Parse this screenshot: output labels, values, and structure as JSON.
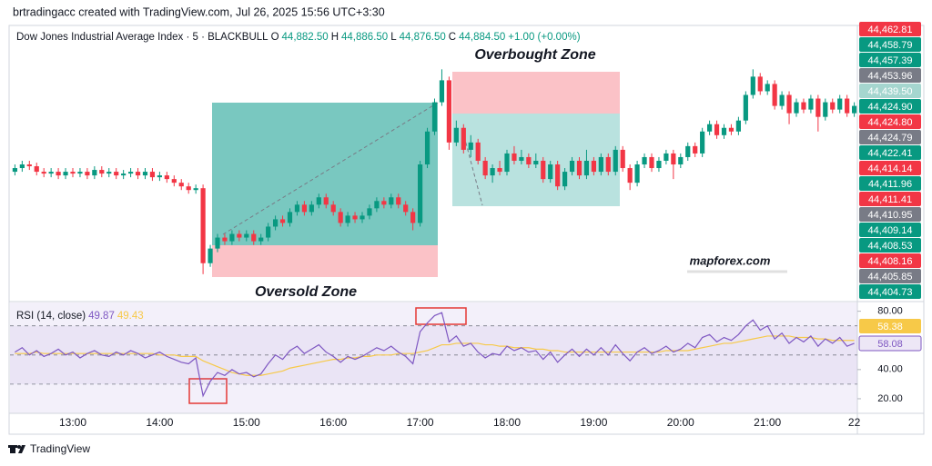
{
  "caption": "brtradingacc created with TradingView.com, Jul 26, 2025 15:56 UTC+3:30",
  "footer": {
    "brand": "TradingView"
  },
  "chart_data": [
    {
      "type": "candlestick",
      "title": "Dow Jones Industrial Average Index · 5 · BLACKBULL",
      "legend": [
        {
          "key": "O",
          "value": "44,882.50"
        },
        {
          "key": "H",
          "value": "44,886.50"
        },
        {
          "key": "L",
          "value": "44,876.50"
        },
        {
          "key": "C",
          "value": "44,884.50"
        }
      ],
      "change": "+1.00 (+0.00%)",
      "annotations": {
        "overbought": "Overbought Zone",
        "oversold": "Oversold Zone",
        "watermark": "mapforex.com"
      },
      "up_color": "#089981",
      "down_color": "#f23645",
      "ylim": [
        44395,
        44470
      ],
      "categories": [
        null,
        null,
        null,
        null,
        null,
        null,
        null,
        null,
        "13:00",
        null,
        null,
        null,
        null,
        null,
        null,
        null,
        null,
        null,
        null,
        null,
        "14:00",
        null,
        null,
        null,
        null,
        null,
        null,
        null,
        null,
        null,
        null,
        null,
        "15:00",
        null,
        null,
        null,
        null,
        null,
        null,
        null,
        null,
        null,
        null,
        null,
        "16:00",
        null,
        null,
        null,
        null,
        null,
        null,
        null,
        null,
        null,
        null,
        null,
        "17:00",
        null,
        null,
        null,
        null,
        null,
        null,
        null,
        null,
        null,
        null,
        null,
        "18:00",
        null,
        null,
        null,
        null,
        null,
        null,
        null,
        null,
        null,
        null,
        null,
        "19:00",
        null,
        null,
        null,
        null,
        null,
        null,
        null,
        null,
        null,
        null,
        null,
        "20:00",
        null,
        null,
        null,
        null,
        null,
        null,
        null,
        null,
        null,
        null,
        null,
        "21:00",
        null,
        null,
        null,
        null,
        null,
        null,
        null,
        null,
        null,
        null,
        null,
        "22"
      ],
      "open": [
        44430,
        44431,
        44432,
        44431.5,
        44430,
        44429.5,
        44430,
        44429,
        44430,
        44429.5,
        44430,
        44429,
        44430.5,
        44429.5,
        44430,
        44429,
        44429.5,
        44430,
        44429,
        44430,
        44428.5,
        44429,
        44428,
        44427,
        44426,
        44425,
        44425.5,
        44405,
        44409,
        44412,
        44411,
        44413,
        44412,
        44413,
        44411,
        44412,
        44415,
        44417,
        44416,
        44419,
        44421,
        44419,
        44421,
        44423,
        44421,
        44419,
        44416,
        44418,
        44417,
        44418,
        44420,
        44422,
        44421,
        44423,
        44421,
        44419,
        44416,
        44432,
        44441,
        44449,
        44455,
        44438,
        44442,
        44436,
        44438,
        44433,
        44429,
        44431,
        44430,
        44435,
        44433,
        44434,
        44432,
        44433,
        44428,
        44432,
        44426,
        44430,
        44433,
        44429,
        44433,
        44430,
        44434,
        44430,
        44436,
        44431,
        44427,
        44432,
        44434,
        44431,
        44433,
        44435,
        44432,
        44434,
        44437,
        44435,
        44441,
        44443,
        44440,
        44442,
        44441,
        44444,
        44451,
        44456,
        44452,
        44454,
        44448,
        44451,
        44446,
        44449,
        44447,
        44450,
        44445,
        44449,
        44447,
        44450,
        44446
      ],
      "high": [
        44432,
        44433,
        44433,
        44432.5,
        44431,
        44431,
        44431,
        44431,
        44431,
        44431,
        44431,
        44431.5,
        44431.5,
        44431,
        44431,
        44430.5,
        44431,
        44431,
        44431,
        44431,
        44430,
        44430,
        44429,
        44428,
        44427,
        44426.5,
        44426.5,
        44410,
        44413,
        44413,
        44414,
        44414,
        44414,
        44414,
        44413,
        44416,
        44418,
        44418,
        44420,
        44422,
        44422,
        44422,
        44424,
        44424,
        44422,
        44420,
        44419,
        44419,
        44419,
        44421,
        44423,
        44423,
        44424,
        44424,
        44422,
        44420,
        44433,
        44442,
        44450,
        44458,
        44456,
        44444,
        44443,
        44440,
        44439,
        44434,
        44432,
        44433,
        44436,
        44437,
        44436,
        44435,
        44435,
        44434,
        44433,
        44433,
        44431,
        44434,
        44434,
        44436,
        44434,
        44435,
        44435,
        44437,
        44437,
        44432,
        44433,
        44435,
        44435,
        44434,
        44436,
        44436,
        44435,
        44438,
        44438,
        44442,
        44444,
        44444,
        44443,
        44443,
        44445,
        44452,
        44458,
        44457,
        44455,
        44455,
        44452,
        44452,
        44450,
        44450,
        44451,
        44451,
        44450,
        44450,
        44451,
        44451,
        44449
      ],
      "low": [
        44429,
        44430,
        44430.5,
        44429,
        44428.5,
        44428.5,
        44428,
        44428,
        44428.5,
        44428.5,
        44428,
        44428,
        44428.5,
        44428.5,
        44428,
        44428,
        44428.5,
        44428,
        44428,
        44427.5,
        44427.5,
        44427,
        44426,
        44425,
        44424,
        44424,
        44402,
        44404,
        44408,
        44410,
        44410,
        44411,
        44411,
        44410,
        44410,
        44411,
        44414,
        44415,
        44415,
        44418,
        44418,
        44418,
        44420,
        44420,
        44418,
        44415,
        44415,
        44416,
        44416,
        44417,
        44419,
        44420,
        44420,
        44420,
        44418,
        44414,
        44415,
        44431,
        44440,
        44448,
        44436,
        44437,
        44435,
        44434,
        44432,
        44428,
        44427,
        44429,
        44429,
        44432,
        44432,
        44431,
        44431,
        44427,
        44427,
        44425,
        44425,
        44429,
        44428,
        44428,
        44429,
        44429,
        44429,
        44429,
        44430,
        44425,
        44426,
        44431,
        44430,
        44430,
        44432,
        44428,
        44431,
        44433,
        44434,
        44434,
        44440,
        44439,
        44439,
        44440,
        44440,
        44443,
        44450,
        44451,
        44451,
        44447,
        44447,
        44443,
        44445,
        44446,
        44446,
        44441,
        44444,
        44446,
        44446,
        44445,
        44445
      ],
      "close": [
        44431,
        44432,
        44431.5,
        44430,
        44429.5,
        44430,
        44429,
        44430,
        44429.5,
        44430,
        44429,
        44430.5,
        44429.5,
        44430,
        44429,
        44429.5,
        44430,
        44429,
        44430,
        44428.5,
        44429,
        44428,
        44427,
        44426,
        44425,
        44425.5,
        44405,
        44409,
        44412,
        44411,
        44413,
        44412,
        44413,
        44411,
        44412,
        44415,
        44417,
        44416,
        44419,
        44421,
        44419,
        44421,
        44423,
        44421,
        44419,
        44416,
        44418,
        44417,
        44418,
        44420,
        44422,
        44421,
        44423,
        44421,
        44419,
        44416,
        44432,
        44441,
        44449,
        44455,
        44438,
        44442,
        44436,
        44438,
        44433,
        44429,
        44431,
        44430,
        44435,
        44433,
        44434,
        44432,
        44433,
        44428,
        44432,
        44426,
        44430,
        44433,
        44429,
        44433,
        44430,
        44434,
        44430,
        44436,
        44431,
        44427,
        44432,
        44434,
        44431,
        44433,
        44435,
        44432,
        44434,
        44437,
        44435,
        44441,
        44443,
        44440,
        44442,
        44441,
        44444,
        44451,
        44456,
        44452,
        44454,
        44448,
        44451,
        44446,
        44449,
        44447,
        44450,
        44445,
        44449,
        44447,
        44450,
        44446,
        44448
      ],
      "price_tags": [
        {
          "label": "44,462.81",
          "color": "#f23645"
        },
        {
          "label": "44,458.79",
          "color": "#089981"
        },
        {
          "label": "44,457.39",
          "color": "#089981"
        },
        {
          "label": "44,453.96",
          "color": "#787b86"
        },
        {
          "label": "44,439.50",
          "color": "#a5d6cf"
        },
        {
          "label": "44,424.90",
          "color": "#089981"
        },
        {
          "label": "44,424.80",
          "color": "#f23645"
        },
        {
          "label": "44,424.79",
          "color": "#787b86"
        },
        {
          "label": "44,422.41",
          "color": "#089981"
        },
        {
          "label": "44,414.14",
          "color": "#f23645"
        },
        {
          "label": "44,411.96",
          "color": "#089981"
        },
        {
          "label": "44,411.41",
          "color": "#f23645"
        },
        {
          "label": "44,410.95",
          "color": "#787b86"
        },
        {
          "label": "44,409.14",
          "color": "#089981"
        },
        {
          "label": "44,408.53",
          "color": "#089981"
        },
        {
          "label": "44,408.16",
          "color": "#f23645"
        },
        {
          "label": "44,405.85",
          "color": "#787b86"
        },
        {
          "label": "44,404.73",
          "color": "#089981"
        }
      ]
    },
    {
      "type": "line",
      "title": "RSI (14, close)",
      "ylim": [
        10,
        86
      ],
      "yticks": [
        {
          "value": 80,
          "label": "80.00"
        },
        {
          "value": 40,
          "label": "40.00"
        },
        {
          "value": 20,
          "label": "20.00"
        }
      ],
      "levels": [
        70,
        50,
        30
      ],
      "band": [
        30,
        70
      ],
      "series": [
        {
          "legend_value": "49.87",
          "tag": "58.08",
          "color": "#7e57c2",
          "values": [
            52,
            55,
            50,
            53,
            49,
            51,
            54,
            50,
            52,
            48,
            51,
            53,
            50,
            49,
            52,
            50,
            53,
            51,
            48,
            50,
            52,
            49,
            47,
            45,
            44,
            48,
            22,
            32,
            38,
            36,
            40,
            37,
            38,
            35,
            37,
            44,
            50,
            47,
            53,
            56,
            51,
            54,
            57,
            52,
            49,
            45,
            49,
            47,
            49,
            52,
            55,
            53,
            56,
            52,
            49,
            44,
            66,
            72,
            77,
            79,
            59,
            63,
            56,
            58,
            52,
            48,
            51,
            50,
            56,
            53,
            55,
            52,
            53,
            47,
            52,
            45,
            50,
            54,
            49,
            54,
            50,
            55,
            50,
            57,
            51,
            46,
            52,
            55,
            51,
            53,
            56,
            52,
            54,
            58,
            55,
            62,
            64,
            59,
            62,
            60,
            64,
            70,
            74,
            67,
            70,
            61,
            65,
            58,
            62,
            59,
            63,
            56,
            61,
            58,
            62,
            56,
            58
          ]
        },
        {
          "legend_value": "49.43",
          "tag": "58.38",
          "color": "#f7c948",
          "values": [
            51,
            51,
            51,
            52,
            51,
            51,
            51,
            51,
            51,
            51,
            51,
            51,
            51,
            51,
            51,
            51,
            51,
            51,
            51,
            51,
            50,
            50,
            50,
            49,
            49,
            49,
            46,
            44,
            42,
            40,
            38,
            37,
            36,
            36,
            36,
            37,
            38,
            39,
            41,
            42,
            43,
            44,
            45,
            46,
            47,
            47,
            48,
            48,
            49,
            49,
            50,
            50,
            50,
            51,
            51,
            51,
            52,
            53,
            55,
            57,
            57,
            58,
            58,
            58,
            58,
            57,
            57,
            56,
            56,
            55,
            55,
            55,
            54,
            54,
            53,
            53,
            52,
            52,
            52,
            52,
            52,
            52,
            52,
            52,
            52,
            52,
            52,
            52,
            52,
            52,
            53,
            53,
            53,
            53,
            54,
            55,
            56,
            57,
            58,
            58,
            59,
            60,
            61,
            62,
            63,
            63,
            63,
            63,
            62,
            62,
            62,
            61,
            61,
            60,
            60,
            60,
            60
          ]
        }
      ]
    }
  ]
}
